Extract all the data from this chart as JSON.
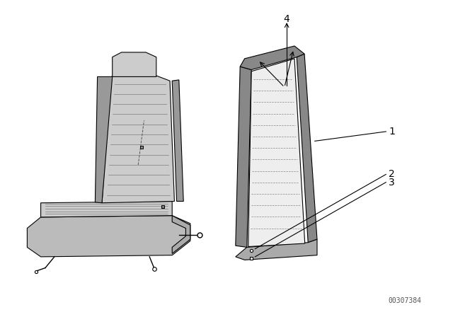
{
  "background_color": "#ffffff",
  "part_number": "00307384",
  "line_color": "#000000",
  "text_color": "#000000"
}
